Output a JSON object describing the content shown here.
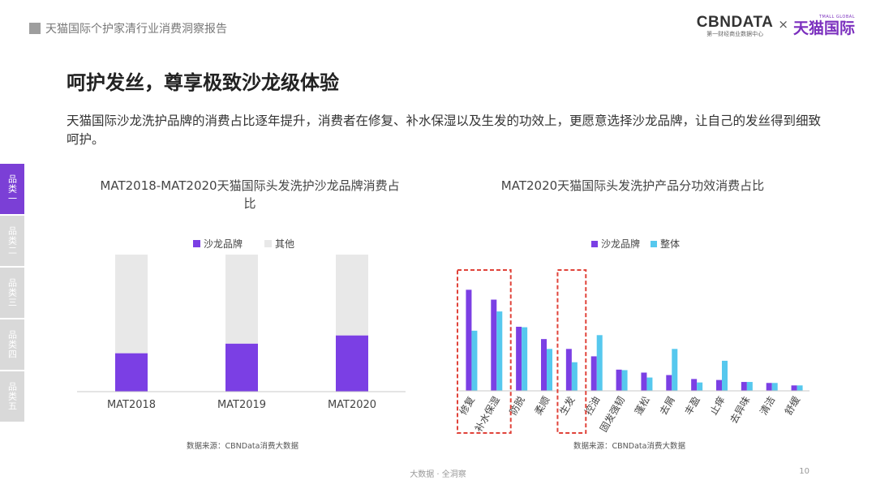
{
  "header": {
    "report_title": "天猫国际个护家清行业消费洞察报告",
    "logo_cbndata": "CBNDATA",
    "logo_cbndata_sub": "第一财经商业数据中心",
    "logo_x": "×",
    "logo_tmall_en": "TMALL GLOBAL",
    "logo_tmall_cn": "天猫国际"
  },
  "page": {
    "heading": "呵护发丝，尊享极致沙龙级体验",
    "description": "天猫国际沙龙洗护品牌的消费占比逐年提升，消费者在修复、补水保湿以及生发的功效上，更愿意选择沙龙品牌，让自己的发丝得到细致呵护。"
  },
  "sidebar": {
    "items": [
      {
        "label": "品类一",
        "active": true
      },
      {
        "label": "品类二",
        "active": false
      },
      {
        "label": "品类三",
        "active": false
      },
      {
        "label": "品类四",
        "active": false
      },
      {
        "label": "品类五",
        "active": false
      }
    ]
  },
  "colors": {
    "salon": "#7b3fe4",
    "other": "#e8e8e8",
    "overall": "#56c8ee",
    "highlight": "#e0433a",
    "axis": "#c8c8c8"
  },
  "chart_data": [
    {
      "type": "bar",
      "stacked": true,
      "title": "MAT2018-MAT2020天猫国际头发洗护沙龙品牌消费占比",
      "categories": [
        "MAT2018",
        "MAT2019",
        "MAT2020"
      ],
      "series": [
        {
          "name": "沙龙品牌",
          "values": [
            28,
            35,
            41
          ]
        },
        {
          "name": "其他",
          "values": [
            72,
            65,
            59
          ]
        }
      ],
      "ylim": [
        0,
        100
      ],
      "legend": "top-center",
      "grid": false,
      "source": "数据来源：CBNData消费大数据"
    },
    {
      "type": "bar",
      "title": "MAT2020天猫国际头发洗护产品分功效消费占比",
      "categories": [
        "修复",
        "补水保湿",
        "防脱",
        "柔顺",
        "生发",
        "控油",
        "固发强韧",
        "蓬松",
        "去屑",
        "丰盈",
        "止痒",
        "去异味",
        "清洁",
        "舒缓"
      ],
      "series": [
        {
          "name": "沙龙品牌",
          "values": [
            20.5,
            18.5,
            13,
            10.5,
            8.5,
            7,
            4.3,
            3.7,
            3.2,
            2.4,
            2.2,
            1.8,
            1.6,
            1.1
          ]
        },
        {
          "name": "整体",
          "values": [
            12.2,
            16.1,
            12.9,
            8.5,
            5.8,
            11.3,
            4.2,
            2.7,
            8.5,
            1.7,
            6.1,
            1.8,
            1.6,
            1.1
          ]
        }
      ],
      "ylim": [
        0,
        25
      ],
      "legend": "top-center",
      "grid": false,
      "highlights": [
        [
          "修复",
          "补水保湿"
        ],
        [
          "生发"
        ]
      ],
      "source": "数据来源：CBNData消费大数据"
    }
  ],
  "footer": {
    "center_text": "大数据 · 全洞察",
    "page_number": "10"
  }
}
